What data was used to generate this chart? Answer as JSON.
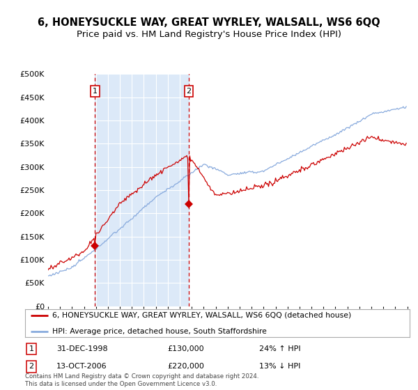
{
  "title": "6, HONEYSUCKLE WAY, GREAT WYRLEY, WALSALL, WS6 6QQ",
  "subtitle": "Price paid vs. HM Land Registry's House Price Index (HPI)",
  "ylim": [
    0,
    500000
  ],
  "yticks": [
    0,
    50000,
    100000,
    150000,
    200000,
    250000,
    300000,
    350000,
    400000,
    450000,
    500000
  ],
  "background_color": "#dce6f5",
  "sale1_price": 130000,
  "sale1_date_str": "31-DEC-1998",
  "sale1_pct": "24% ↑ HPI",
  "sale2_price": 220000,
  "sale2_date_str": "13-OCT-2006",
  "sale2_pct": "13% ↓ HPI",
  "legend_line1": "6, HONEYSUCKLE WAY, GREAT WYRLEY, WALSALL, WS6 6QQ (detached house)",
  "legend_line2": "HPI: Average price, detached house, South Staffordshire",
  "footnote": "Contains HM Land Registry data © Crown copyright and database right 2024.\nThis data is licensed under the Open Government Licence v3.0.",
  "red_color": "#cc0000",
  "blue_color": "#88aadd",
  "shade_color": "#dce9f8",
  "vline_color": "#cc0000",
  "grid_color": "#ffffff",
  "title_fontsize": 10.5,
  "subtitle_fontsize": 9.5
}
